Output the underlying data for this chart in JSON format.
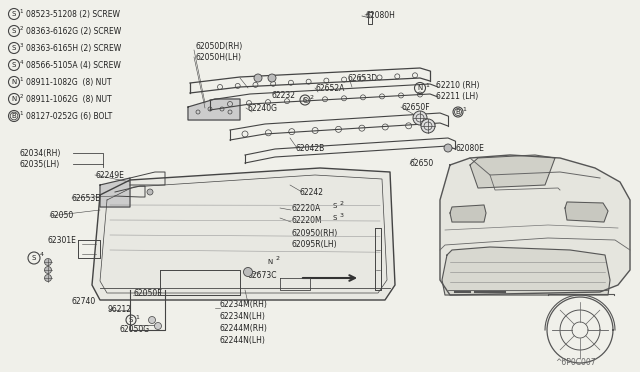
{
  "bg_color": "#f0f0ea",
  "legend_items": [
    {
      "symbol": "S",
      "num": "1",
      "text": "08523-51208 (2) SCREW"
    },
    {
      "symbol": "S",
      "num": "2",
      "text": "08363-6162G (2) SCREW"
    },
    {
      "symbol": "S",
      "num": "3",
      "text": "08363-6165H (2) SCREW"
    },
    {
      "symbol": "S",
      "num": "4",
      "text": "08566-5105A (4) SCREW"
    },
    {
      "symbol": "N",
      "num": "1",
      "text": "08911-1082G  (8) NUT"
    },
    {
      "symbol": "N",
      "num": "2",
      "text": "08911-1062G  (8) NUT"
    },
    {
      "symbol": "B",
      "num": "1",
      "text": "08127-0252G (6) BOLT"
    }
  ],
  "watermark": "^6P0C007",
  "line_color": "#444444",
  "text_color": "#222222",
  "label_fontsize": 5.5
}
